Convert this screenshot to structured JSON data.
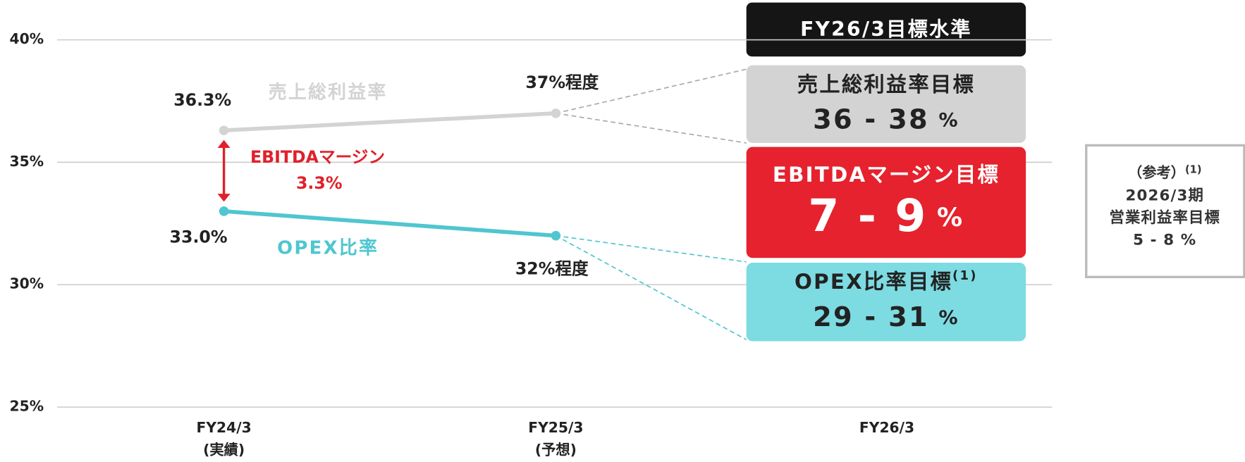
{
  "chart_data": {
    "type": "line",
    "categories": [
      "FY24/3",
      "FY25/3",
      "FY26/3"
    ],
    "category_sublabels": [
      "(実績)",
      "(予想)",
      null
    ],
    "ylim": [
      25,
      40
    ],
    "yticks": [
      {
        "value": 25,
        "label": "25%"
      },
      {
        "value": 30,
        "label": "30%"
      },
      {
        "value": 35,
        "label": "35%"
      },
      {
        "value": 40,
        "label": "40%"
      }
    ],
    "grid": true,
    "series": [
      {
        "name": "売上総利益率",
        "color": "#d3d3d3",
        "values": [
          36.3,
          37,
          null
        ],
        "value_labels": [
          "36.3%",
          "37%程度",
          null
        ]
      },
      {
        "name": "OPEX比率",
        "color": "#4fc6d0",
        "values": [
          33.0,
          32,
          null
        ],
        "value_labels": [
          "33.0%",
          "32%程度",
          null
        ]
      }
    ],
    "annotation": {
      "label": "EBITDAマージン",
      "value": 3.3,
      "value_label": "3.3%",
      "color": "#e0202a"
    },
    "targets": {
      "header": "FY26/3目標水準",
      "boxes": [
        {
          "title": "売上総利益率目標",
          "range": "36 - 38",
          "unit": "%",
          "color": "#d3d3d3"
        },
        {
          "title": "EBITDAマージン目標",
          "range": "7 - 9",
          "unit": "%",
          "color": "#e5222e"
        },
        {
          "title": "OPEX比率目標",
          "note": "(1)",
          "range": "29 - 31",
          "unit": "%",
          "color": "#7ddbe2"
        }
      ]
    },
    "reference": {
      "title": "（参考）",
      "note": "(1)",
      "lines": [
        "2026/3期",
        "営業利益率目標",
        "5 - 8 %"
      ]
    }
  }
}
